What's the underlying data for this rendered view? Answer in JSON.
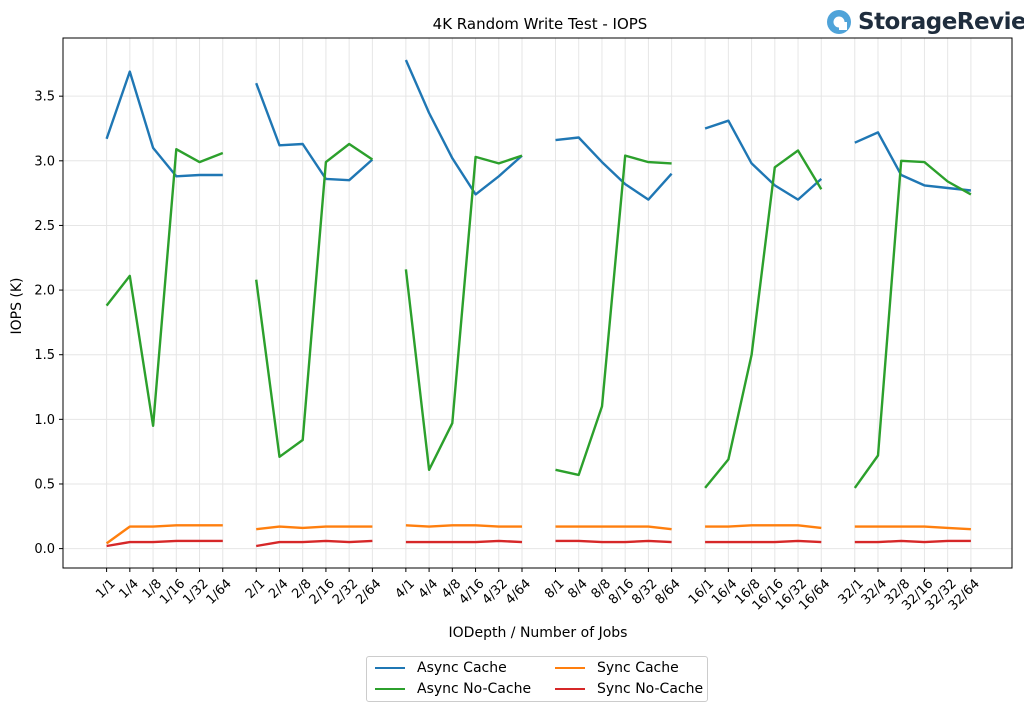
{
  "brand": {
    "name": "StorageReview",
    "icon": "storagereview-logo-icon",
    "icon_color": "#4fa3d9"
  },
  "chart_data": {
    "type": "line",
    "title": "4K Random Write Test - IOPS",
    "xlabel": "IODepth / Number of Jobs",
    "ylabel": "IOPS (K)",
    "ylim": [
      -0.15,
      3.95
    ],
    "yticks": [
      "0.0",
      "0.5",
      "1.0",
      "1.5",
      "2.0",
      "2.5",
      "3.0",
      "3.5"
    ],
    "grid": true,
    "legend_position": "bottom-center",
    "groups": [
      [
        "1/1",
        "1/4",
        "1/8",
        "1/16",
        "1/32",
        "1/64"
      ],
      [
        "2/1",
        "2/4",
        "2/8",
        "2/16",
        "2/32",
        "2/64"
      ],
      [
        "4/1",
        "4/4",
        "4/8",
        "4/16",
        "4/32",
        "4/64"
      ],
      [
        "8/1",
        "8/4",
        "8/8",
        "8/16",
        "8/32",
        "8/64"
      ],
      [
        "16/1",
        "16/4",
        "16/8",
        "16/16",
        "16/32",
        "16/64"
      ],
      [
        "32/1",
        "32/4",
        "32/8",
        "32/16",
        "32/32",
        "32/64"
      ]
    ],
    "series": [
      {
        "name": "Async Cache",
        "color": "#1f77b4",
        "values": [
          [
            3.17,
            3.69,
            3.1,
            2.88,
            2.89,
            2.89
          ],
          [
            3.6,
            3.12,
            3.13,
            2.86,
            2.85,
            3.01
          ],
          [
            3.78,
            3.37,
            3.02,
            2.74,
            2.88,
            3.04
          ],
          [
            3.16,
            3.18,
            2.99,
            2.82,
            2.7,
            2.9
          ],
          [
            3.25,
            3.31,
            2.98,
            2.81,
            2.7,
            2.86
          ],
          [
            3.14,
            3.22,
            2.89,
            2.81,
            2.79,
            2.77
          ]
        ]
      },
      {
        "name": "Async No-Cache",
        "color": "#2ca02c",
        "values": [
          [
            1.88,
            2.11,
            0.95,
            3.09,
            2.99,
            3.06
          ],
          [
            2.08,
            0.71,
            0.84,
            2.99,
            3.13,
            3.01
          ],
          [
            2.16,
            0.61,
            0.97,
            3.03,
            2.98,
            3.04
          ],
          [
            0.61,
            0.57,
            1.1,
            3.04,
            2.99,
            2.98
          ],
          [
            0.47,
            0.69,
            1.5,
            2.95,
            3.08,
            2.78
          ],
          [
            0.47,
            0.72,
            3.0,
            2.99,
            2.84,
            2.74
          ]
        ]
      },
      {
        "name": "Sync Cache",
        "color": "#ff7f0e",
        "values": [
          [
            0.04,
            0.17,
            0.17,
            0.18,
            0.18,
            0.18
          ],
          [
            0.15,
            0.17,
            0.16,
            0.17,
            0.17,
            0.17
          ],
          [
            0.18,
            0.17,
            0.18,
            0.18,
            0.17,
            0.17
          ],
          [
            0.17,
            0.17,
            0.17,
            0.17,
            0.17,
            0.15
          ],
          [
            0.17,
            0.17,
            0.18,
            0.18,
            0.18,
            0.16
          ],
          [
            0.17,
            0.17,
            0.17,
            0.17,
            0.16,
            0.15
          ]
        ]
      },
      {
        "name": "Sync No-Cache",
        "color": "#d62728",
        "values": [
          [
            0.02,
            0.05,
            0.05,
            0.06,
            0.06,
            0.06
          ],
          [
            0.02,
            0.05,
            0.05,
            0.06,
            0.05,
            0.06
          ],
          [
            0.05,
            0.05,
            0.05,
            0.05,
            0.06,
            0.05
          ],
          [
            0.06,
            0.06,
            0.05,
            0.05,
            0.06,
            0.05
          ],
          [
            0.05,
            0.05,
            0.05,
            0.05,
            0.06,
            0.05
          ],
          [
            0.05,
            0.05,
            0.06,
            0.05,
            0.06,
            0.06
          ]
        ]
      }
    ]
  }
}
